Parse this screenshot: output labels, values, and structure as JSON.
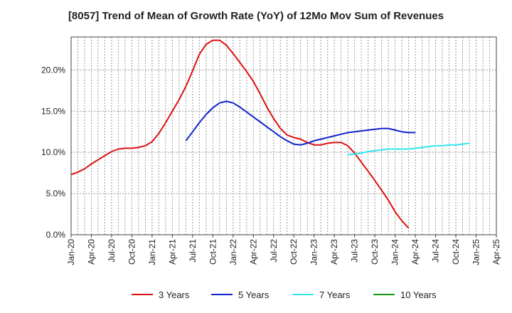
{
  "chart_data": {
    "type": "line",
    "title": "[8057]  Trend of Mean of Growth Rate (YoY) of 12Mo Mov Sum of Revenues",
    "xlabel": "",
    "ylabel": "",
    "ylim": [
      0,
      24
    ],
    "y_ticks": [
      0,
      5,
      10,
      15,
      20
    ],
    "y_tick_labels": [
      "0.0%",
      "5.0%",
      "10.0%",
      "15.0%",
      "20.0%"
    ],
    "x_tick_labels": [
      "Jan-20",
      "Apr-20",
      "Jul-20",
      "Oct-20",
      "Jan-21",
      "Apr-21",
      "Jul-21",
      "Oct-21",
      "Jan-22",
      "Apr-22",
      "Jul-22",
      "Oct-22",
      "Jan-23",
      "Apr-23",
      "Jul-23",
      "Oct-23",
      "Jan-24",
      "Apr-24",
      "Jul-24",
      "Oct-24",
      "Jan-25",
      "Apr-25"
    ],
    "x_start": "2020-01",
    "x_end": "2025-04",
    "grid": true,
    "legend_position": "bottom",
    "series": [
      {
        "name": "3 Years",
        "color": "#dd1111",
        "start": "2020-01",
        "values": [
          7.3,
          7.6,
          8.0,
          8.6,
          9.1,
          9.6,
          10.1,
          10.4,
          10.5,
          10.5,
          10.6,
          10.8,
          11.3,
          12.3,
          13.6,
          15.0,
          16.4,
          18.0,
          19.9,
          21.9,
          23.1,
          23.6,
          23.6,
          23.0,
          22.0,
          20.9,
          19.8,
          18.6,
          17.1,
          15.5,
          14.1,
          12.9,
          12.1,
          11.8,
          11.6,
          11.2,
          10.9,
          10.9,
          11.1,
          11.2,
          11.2,
          10.8,
          9.9,
          8.8,
          7.7,
          6.6,
          5.4,
          4.2,
          2.8,
          1.7,
          0.8
        ],
        "visible": true
      },
      {
        "name": "5 Years",
        "color": "#1122cc",
        "start": "2021-06",
        "values": [
          11.4,
          12.5,
          13.6,
          14.6,
          15.4,
          16.0,
          16.2,
          16.0,
          15.5,
          14.9,
          14.3,
          13.7,
          13.1,
          12.5,
          11.9,
          11.4,
          11.0,
          10.9,
          11.1,
          11.4,
          11.6,
          11.8,
          12.0,
          12.2,
          12.4,
          12.5,
          12.6,
          12.7,
          12.8,
          12.9,
          12.9,
          12.7,
          12.5,
          12.4,
          12.4
        ],
        "visible": true
      },
      {
        "name": "7 Years",
        "color": "#33e5f0",
        "start": "2023-06",
        "values": [
          9.7,
          9.8,
          9.9,
          10.1,
          10.2,
          10.3,
          10.4,
          10.4,
          10.4,
          10.4,
          10.5,
          10.6,
          10.7,
          10.8,
          10.8,
          10.9,
          10.9,
          11.0,
          11.1
        ],
        "visible": true
      },
      {
        "name": "10 Years",
        "color": "#119911",
        "start": "2020-01",
        "values": [],
        "visible": true
      }
    ]
  }
}
